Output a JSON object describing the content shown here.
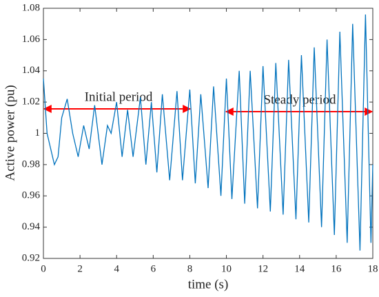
{
  "chart_data": {
    "type": "line",
    "xlabel": "time (s)",
    "ylabel": "Active power (pu)",
    "x": [
      0,
      0.2,
      0.4,
      0.6,
      0.8,
      1.0,
      1.3,
      1.6,
      1.9,
      2.2,
      2.5,
      2.8,
      3.2,
      3.5,
      3.7,
      4.0,
      4.3,
      4.6,
      4.9,
      5.3,
      5.6,
      5.9,
      6.2,
      6.5,
      6.9,
      7.3,
      7.6,
      8.0,
      8.3,
      8.6,
      9.0,
      9.3,
      9.7,
      10.0,
      10.3,
      10.7,
      11.0,
      11.3,
      11.7,
      12.0,
      12.4,
      12.7,
      13.1,
      13.4,
      13.8,
      14.1,
      14.5,
      14.8,
      15.2,
      15.5,
      15.9,
      16.2,
      16.6,
      16.9,
      17.3,
      17.6,
      17.9,
      18.0
    ],
    "series": [
      {
        "name": "Active power",
        "color": "#0072bd",
        "values": [
          1.035,
          1.0,
          0.99,
          0.98,
          0.985,
          1.01,
          1.022,
          1.0,
          0.985,
          1.005,
          0.99,
          1.018,
          0.98,
          1.005,
          1.0,
          1.02,
          0.985,
          1.015,
          0.985,
          1.023,
          0.98,
          1.02,
          0.975,
          1.025,
          0.97,
          1.027,
          0.97,
          1.028,
          0.968,
          1.025,
          0.965,
          1.03,
          0.96,
          1.035,
          0.958,
          1.04,
          0.955,
          1.04,
          0.952,
          1.043,
          0.95,
          1.045,
          0.948,
          1.047,
          0.945,
          1.05,
          0.943,
          1.055,
          0.94,
          1.06,
          0.935,
          1.065,
          0.93,
          1.07,
          0.925,
          1.076,
          0.93,
          0.98
        ]
      }
    ],
    "xlim": [
      0,
      18
    ],
    "xticks": [
      0,
      2,
      4,
      6,
      8,
      10,
      12,
      14,
      16,
      18
    ],
    "ylim": [
      0.92,
      1.08
    ],
    "yticks": [
      0.92,
      0.94,
      0.96,
      0.98,
      1,
      1.02,
      1.04,
      1.06,
      1.08
    ],
    "annotations": [
      {
        "text": "Initial period",
        "color": "#ff0000"
      },
      {
        "text": "Steady period",
        "color": "#ff0000"
      }
    ]
  }
}
